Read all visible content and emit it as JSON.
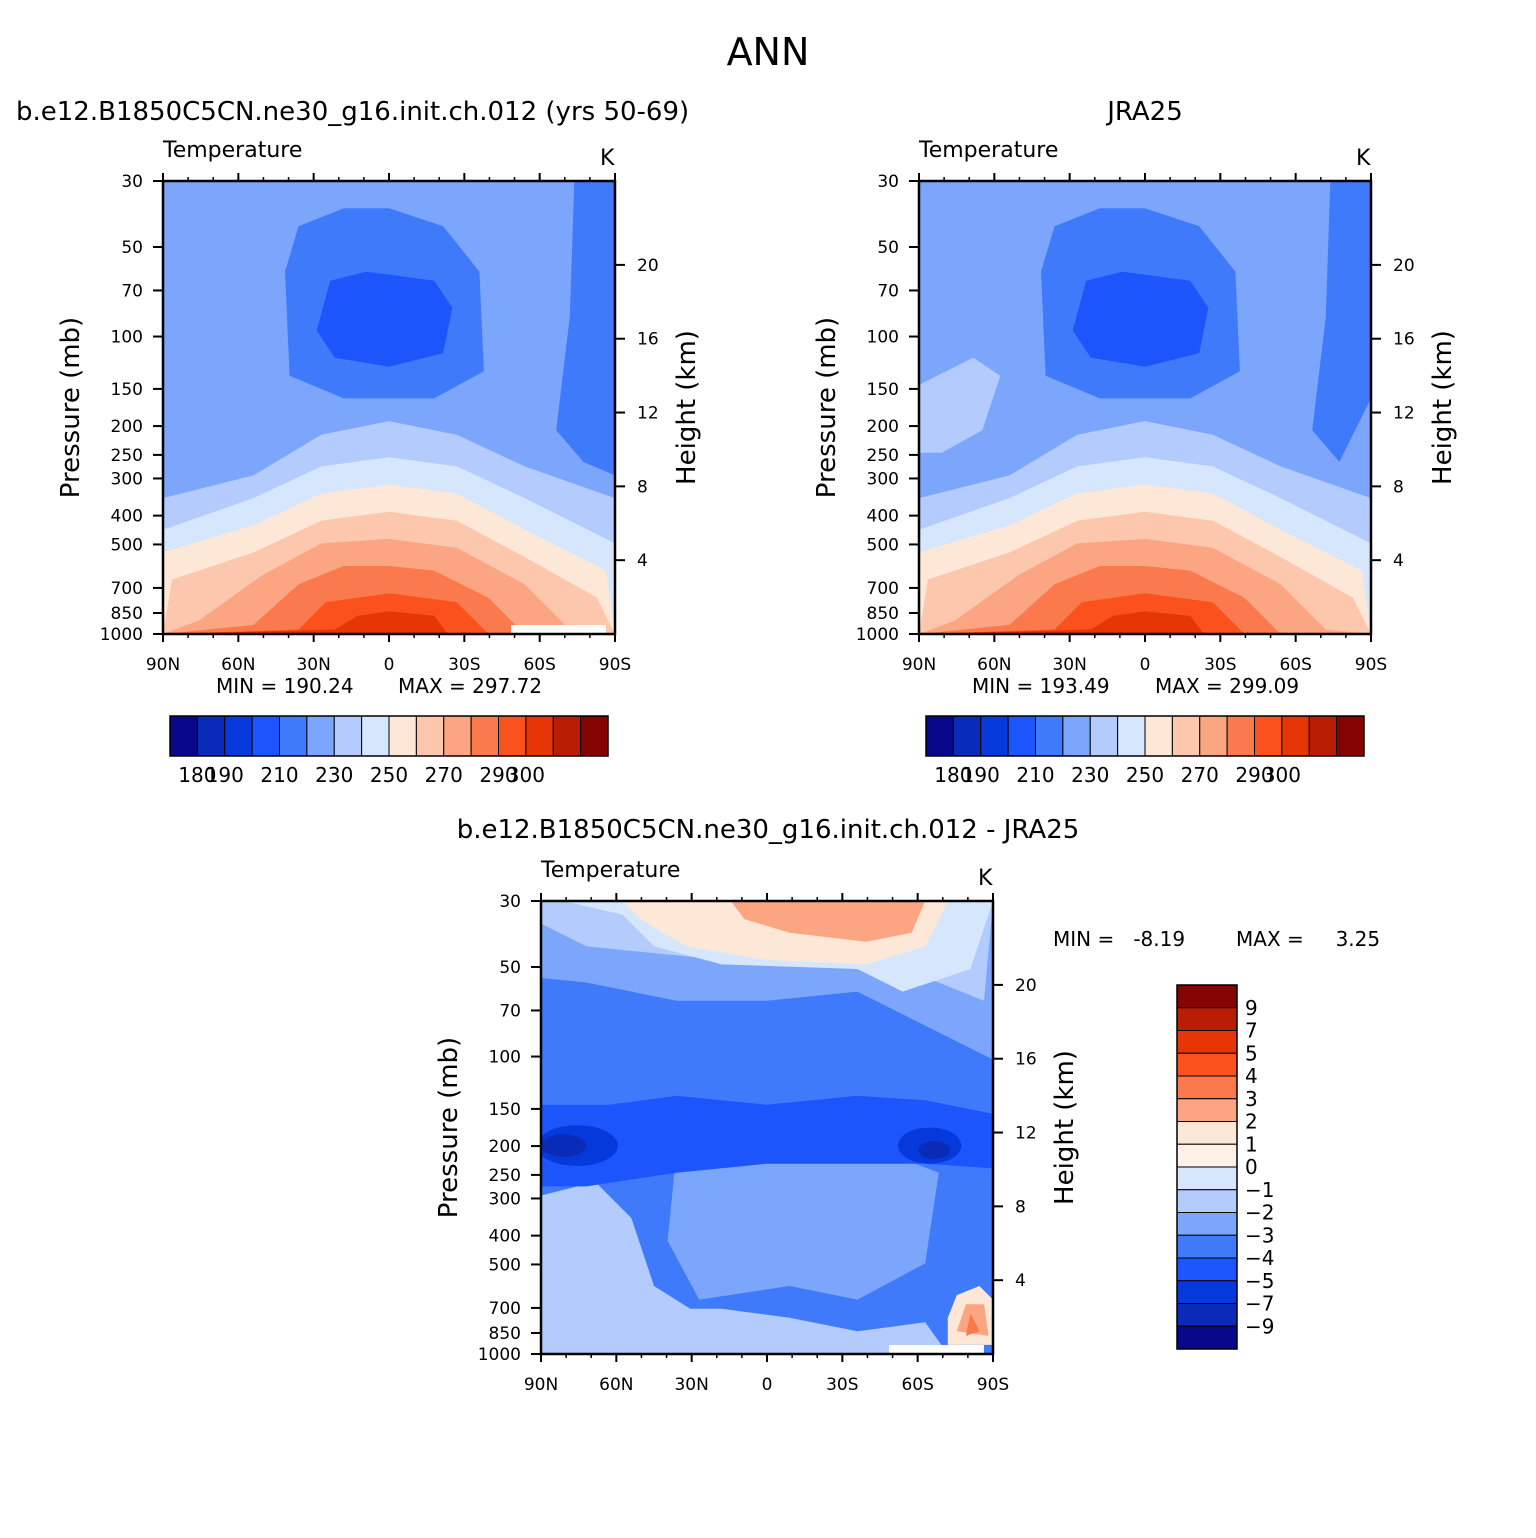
{
  "page": {
    "title": "ANN",
    "panel_left_title": "b.e12.B1850C5CN.ne30_g16.init.ch.012 (yrs 50-69)",
    "panel_right_title": "JRA25",
    "panel_diff_title": "b.e12.B1850C5CN.ne30_g16.init.ch.012 - JRA25"
  },
  "panels": {
    "left": {
      "variable": "Temperature",
      "units": "K",
      "min_label": "MIN = ",
      "min_value": "190.24",
      "max_label": "MAX = ",
      "max_value": "297.72"
    },
    "right": {
      "variable": "Temperature",
      "units": "K",
      "min_label": "MIN = ",
      "min_value": "193.49",
      "max_label": "MAX = ",
      "max_value": "299.09"
    },
    "diff": {
      "variable": "Temperature",
      "units": "K",
      "min_label": "MIN = ",
      "min_value": "-8.19",
      "max_label": "MAX = ",
      "max_value": "3.25"
    }
  },
  "chart_data": [
    {
      "type": "heatmap",
      "title": "b.e12.B1850C5CN.ne30_g16.init.ch.012 (yrs 50-69)",
      "subtitle": "Temperature",
      "units": "K",
      "ylabel": "Pressure (mb)",
      "ylabel_right": "Height (km)",
      "x": [
        "90N",
        "60N",
        "30N",
        "0",
        "30S",
        "60S",
        "90S"
      ],
      "y_pressure": [
        30,
        50,
        70,
        100,
        150,
        200,
        250,
        300,
        400,
        500,
        700,
        850,
        1000
      ],
      "y_height_km": [
        4,
        8,
        12,
        16,
        20
      ],
      "ylim": [
        1000,
        30
      ],
      "y_scale": "log",
      "min": 190.24,
      "max": 297.72,
      "levels": [
        180,
        190,
        200,
        210,
        220,
        230,
        240,
        250,
        260,
        270,
        280,
        290,
        300
      ],
      "colorbar_labels": [
        "180",
        "190",
        "210",
        "230",
        "250",
        "270",
        "290",
        "300"
      ]
    },
    {
      "type": "heatmap",
      "title": "JRA25",
      "subtitle": "Temperature",
      "units": "K",
      "ylabel": "Pressure (mb)",
      "ylabel_right": "Height (km)",
      "x": [
        "90N",
        "60N",
        "30N",
        "0",
        "30S",
        "60S",
        "90S"
      ],
      "y_pressure": [
        30,
        50,
        70,
        100,
        150,
        200,
        250,
        300,
        400,
        500,
        700,
        850,
        1000
      ],
      "y_height_km": [
        4,
        8,
        12,
        16,
        20
      ],
      "ylim": [
        1000,
        30
      ],
      "y_scale": "log",
      "min": 193.49,
      "max": 299.09,
      "levels": [
        180,
        190,
        200,
        210,
        220,
        230,
        240,
        250,
        260,
        270,
        280,
        290,
        300
      ],
      "colorbar_labels": [
        "180",
        "190",
        "210",
        "230",
        "250",
        "270",
        "290",
        "300"
      ]
    },
    {
      "type": "heatmap",
      "title": "b.e12.B1850C5CN.ne30_g16.init.ch.012 - JRA25",
      "subtitle": "Temperature",
      "units": "K",
      "ylabel": "Pressure (mb)",
      "ylabel_right": "Height (km)",
      "x": [
        "90N",
        "60N",
        "30N",
        "0",
        "30S",
        "60S",
        "90S"
      ],
      "y_pressure": [
        30,
        50,
        70,
        100,
        150,
        200,
        250,
        300,
        400,
        500,
        700,
        850,
        1000
      ],
      "y_height_km": [
        4,
        8,
        12,
        16,
        20
      ],
      "ylim": [
        1000,
        30
      ],
      "y_scale": "log",
      "min": -8.19,
      "max": 3.25,
      "levels": [
        -9,
        -7,
        -5,
        -4,
        -3,
        -2,
        -1,
        0,
        1,
        2,
        3,
        4,
        5,
        7,
        9
      ],
      "colorbar_labels": [
        "9",
        "7",
        "5",
        "4",
        "3",
        "2",
        "1",
        "0",
        "-1",
        "-2",
        "-3",
        "-4",
        "-5",
        "-7",
        "-9"
      ]
    }
  ],
  "colors": {
    "abs_palette": [
      "#08088c",
      "#0a2bb8",
      "#0639db",
      "#1c55fc",
      "#3f7afb",
      "#7ca6fc",
      "#b3cbfd",
      "#d6e7fd",
      "#fde7d7",
      "#fdc7ad",
      "#fca582",
      "#fb7a4d",
      "#fb521d",
      "#e63606",
      "#b91d04",
      "#840402"
    ],
    "diff_palette": [
      "#840402",
      "#b91d04",
      "#e63606",
      "#fb521d",
      "#fb7a4d",
      "#fca582",
      "#fde7d7",
      "#fdf0e6",
      "#d6e7fd",
      "#b3cbfd",
      "#7ca6fc",
      "#3f7afb",
      "#1c55fc",
      "#0639db",
      "#0a2bb8",
      "#08088c"
    ]
  }
}
